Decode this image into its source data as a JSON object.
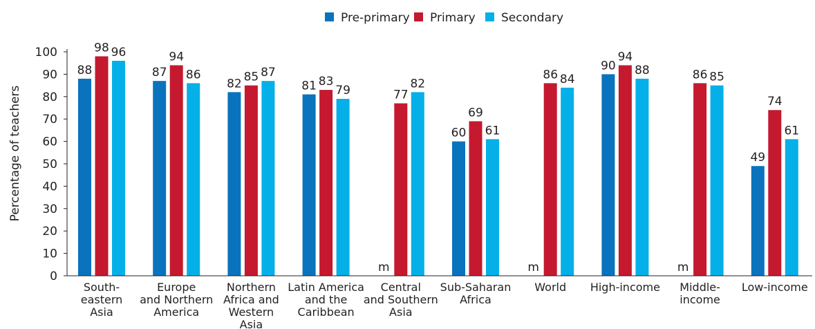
{
  "chart_data": {
    "type": "bar",
    "ylabel": "Percentage of teachers",
    "xlabel": "",
    "ylim": [
      0,
      100
    ],
    "yticks": [
      0,
      10,
      20,
      30,
      40,
      50,
      60,
      70,
      80,
      90,
      100
    ],
    "grid": false,
    "legend_position": "top-center",
    "missing_marker": "m",
    "categories": [
      "South-eastern Asia",
      "Europe and Northern America",
      "Northern Africa and Western Asia",
      "Latin America and the Caribbean",
      "Central and Southern Asia",
      "Sub-Saharan Africa",
      "World",
      "High-income",
      "Middle-income",
      "Low-income"
    ],
    "category_label_lines": [
      [
        "South-",
        "eastern",
        "Asia"
      ],
      [
        "Europe",
        "and Northern",
        "America"
      ],
      [
        "Northern",
        "Africa and",
        "Western",
        "Asia"
      ],
      [
        "Latin America",
        "and the",
        "Caribbean"
      ],
      [
        "Central",
        "and Southern",
        "Asia"
      ],
      [
        "Sub-Saharan",
        "Africa"
      ],
      [
        "World"
      ],
      [
        "High-income"
      ],
      [
        "Middle-",
        "income"
      ],
      [
        "Low-income"
      ]
    ],
    "series": [
      {
        "name": "Pre-primary",
        "color": "#0a73bd",
        "values": [
          88,
          87,
          82,
          81,
          null,
          60,
          null,
          90,
          null,
          49
        ]
      },
      {
        "name": "Primary",
        "color": "#c4192f",
        "values": [
          98,
          94,
          85,
          83,
          77,
          69,
          86,
          94,
          86,
          74
        ]
      },
      {
        "name": "Secondary",
        "color": "#05b0e8",
        "values": [
          96,
          86,
          87,
          79,
          82,
          61,
          84,
          88,
          85,
          61
        ]
      }
    ]
  }
}
